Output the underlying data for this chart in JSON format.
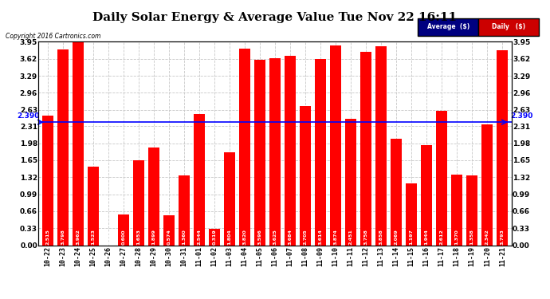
{
  "title": "Daily Solar Energy & Average Value Tue Nov 22 16:11",
  "copyright": "Copyright 2016 Cartronics.com",
  "categories": [
    "10-22",
    "10-23",
    "10-24",
    "10-25",
    "10-26",
    "10-27",
    "10-28",
    "10-29",
    "10-30",
    "10-31",
    "11-01",
    "11-02",
    "11-03",
    "11-04",
    "11-05",
    "11-06",
    "11-07",
    "11-08",
    "11-09",
    "11-10",
    "11-11",
    "11-12",
    "11-13",
    "11-14",
    "11-15",
    "11-16",
    "11-17",
    "11-18",
    "11-19",
    "11-20",
    "11-21"
  ],
  "values": [
    2.515,
    3.798,
    3.962,
    1.523,
    0.0,
    0.6,
    1.653,
    1.899,
    0.574,
    1.36,
    2.544,
    0.319,
    1.804,
    3.82,
    3.596,
    3.625,
    3.684,
    2.705,
    3.614,
    3.874,
    2.451,
    3.758,
    3.858,
    2.069,
    1.197,
    1.944,
    2.612,
    1.37,
    1.358,
    2.342,
    3.793
  ],
  "average": 2.39,
  "bar_color": "#FF0000",
  "average_line_color": "#0000FF",
  "background_color": "#FFFFFF",
  "grid_color": "#C8C8C8",
  "ylim": [
    0,
    3.95
  ],
  "yticks": [
    0.0,
    0.33,
    0.66,
    0.99,
    1.32,
    1.65,
    1.98,
    2.31,
    2.63,
    2.96,
    3.29,
    3.62,
    3.95
  ],
  "title_fontsize": 11,
  "legend_avg_bg": "#000080",
  "legend_daily_bg": "#CC0000",
  "avg_label": "Average  ($)",
  "daily_label": "Daily   ($)"
}
